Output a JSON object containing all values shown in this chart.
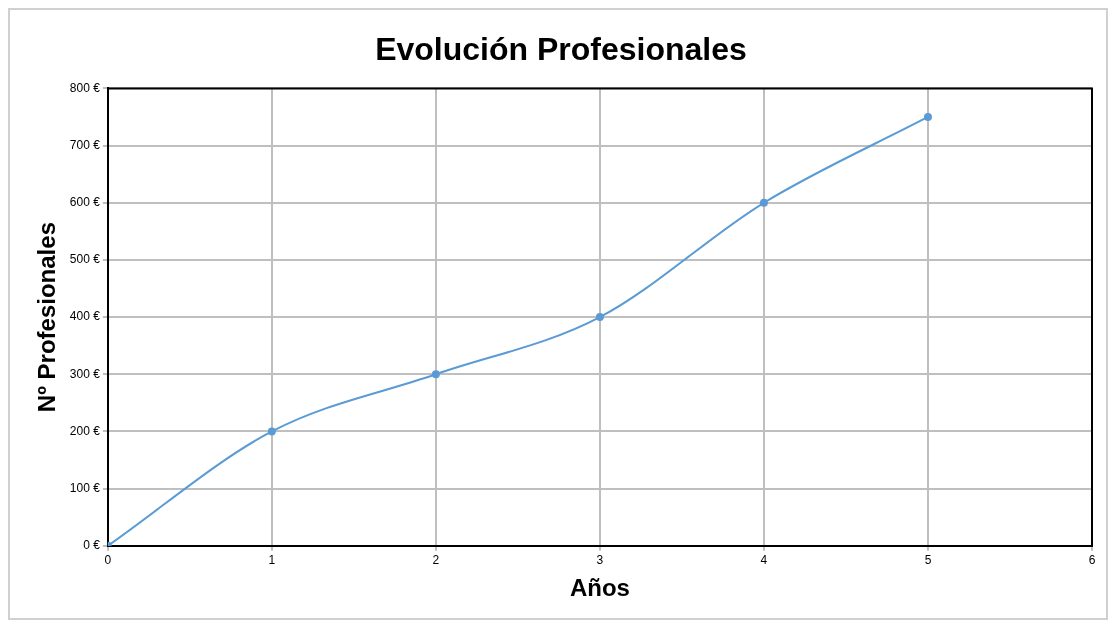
{
  "chart_data": {
    "type": "line",
    "title": "Evolución Profesionales",
    "xlabel": "Años",
    "ylabel": "Nº Profesionales",
    "x": [
      0,
      1,
      2,
      3,
      4,
      5
    ],
    "series": [
      {
        "color": "#5b9bd5",
        "values": [
          0,
          200,
          300,
          400,
          600,
          750
        ]
      }
    ],
    "xlim": [
      0,
      6
    ],
    "xticks": [
      0,
      1,
      2,
      3,
      4,
      5,
      6
    ],
    "ylim": [
      0,
      800
    ],
    "yticks": [
      {
        "value": 0,
        "label": "0 €"
      },
      {
        "value": 100,
        "label": "100 €"
      },
      {
        "value": 200,
        "label": "200 €"
      },
      {
        "value": 300,
        "label": "300 €"
      },
      {
        "value": 400,
        "label": "400 €"
      },
      {
        "value": 500,
        "label": "500 €"
      },
      {
        "value": 600,
        "label": "600 €"
      },
      {
        "value": 700,
        "label": "700 €"
      },
      {
        "value": 800,
        "label": "800 €"
      }
    ],
    "grid": true,
    "legend": false,
    "marker": "circle",
    "line_style": "solid"
  }
}
